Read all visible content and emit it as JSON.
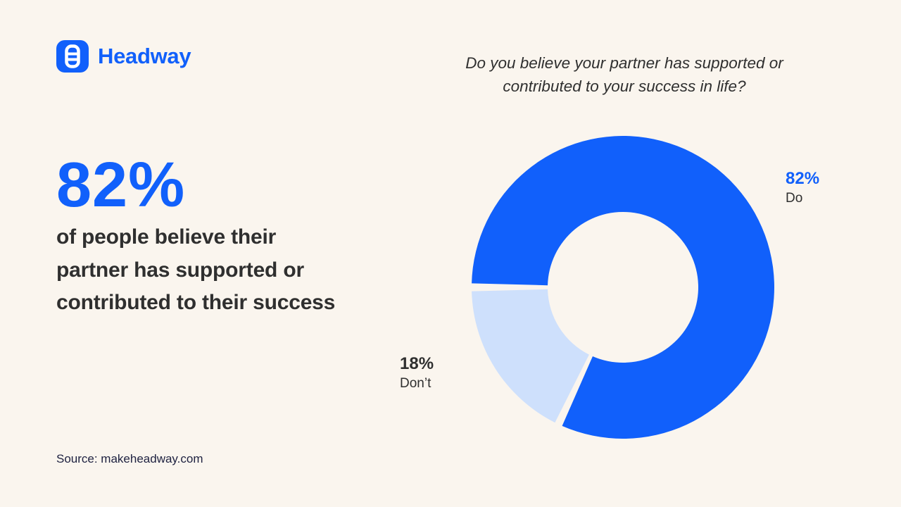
{
  "page": {
    "background": "#FAF5EE"
  },
  "header": {
    "brand": "Headway",
    "brand_color": "#1160FB",
    "logo_icon": "ladder-icon"
  },
  "left_panel": {
    "stat": "82%",
    "headline": "of people believe their partner has supported or contributed to their success",
    "source": "Source: makeheadway.com"
  },
  "chart_data": {
    "type": "pie",
    "donut": true,
    "title": "Do you believe your partner has supported or contributed to your success in life?",
    "slices": [
      {
        "label": "Do",
        "value": 82,
        "display": "82%",
        "color": "#1160FB"
      },
      {
        "label": "Don’t",
        "value": 18,
        "display": "18%",
        "color": "#CEE0FC"
      }
    ],
    "total": 100,
    "legend_position": "callout-labels",
    "accent_color": "#1160FB",
    "background": "#FAF5EE"
  }
}
